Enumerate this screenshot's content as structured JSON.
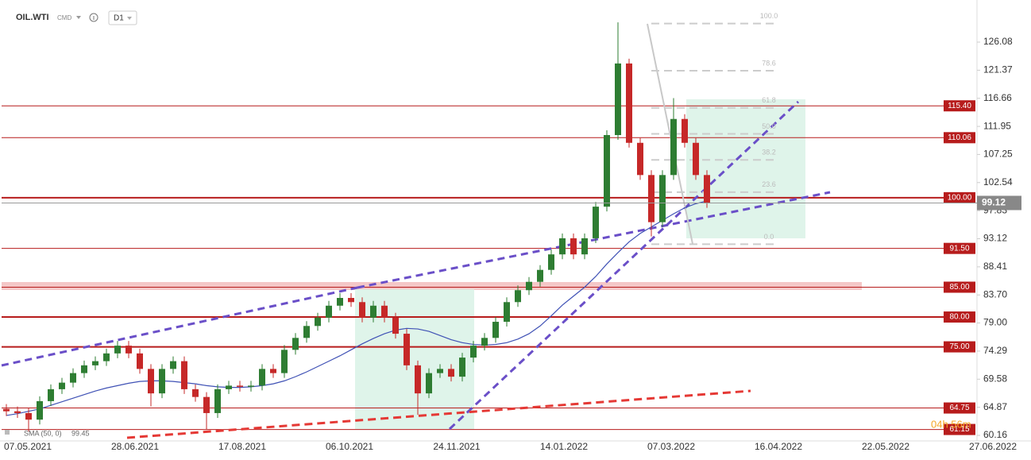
{
  "header": {
    "symbol": "OIL.WTI",
    "market": "CMD",
    "timeframe": "D1"
  },
  "chart_data": {
    "type": "candlestick",
    "ylim": [
      59.23,
      133.14
    ],
    "yticks": [
      60.16,
      64.87,
      69.58,
      74.29,
      {
        "value": 79.0,
        "label": "79.00"
      },
      {
        "value": 83.7,
        "label": "83.70"
      },
      88.41,
      93.12,
      97.83,
      102.54,
      107.25,
      111.95,
      116.66,
      121.37,
      126.08
    ],
    "x_labels": [
      "07.05.2021",
      "28.06.2021",
      "17.08.2021",
      "06.10.2021",
      "24.11.2021",
      "14.01.2022",
      "07.03.2022",
      "16.04.2022",
      "22.05.2022",
      "27.06.2022"
    ],
    "up_color": "#2e7d32",
    "down_color": "#c62828",
    "open": [
      64.6,
      64.2,
      63.9,
      62.8,
      65.9,
      67.9,
      69.0,
      70.6,
      71.9,
      72.6,
      73.9,
      75.2,
      73.9,
      71.3,
      67.2,
      71.3,
      72.6,
      67.9,
      66.6,
      63.9,
      67.9,
      68.5,
      68.3,
      68.5,
      71.3,
      70.6,
      74.5,
      76.5,
      78.5,
      79.9,
      81.9,
      83.2,
      82.5,
      79.9,
      81.9,
      79.9,
      77.2,
      71.9,
      67.2,
      70.6,
      71.3,
      70.0,
      73.2,
      75.2,
      76.5,
      79.2,
      82.5,
      84.5,
      85.9,
      87.9,
      90.5,
      93.2,
      90.5,
      93.2,
      98.5,
      110.5,
      122.5,
      109.2,
      103.8,
      95.9,
      103.8,
      113.2,
      109.2,
      103.8
    ],
    "high": [
      65.4,
      65.0,
      64.7,
      66.7,
      68.7,
      69.8,
      71.4,
      72.7,
      73.4,
      74.7,
      76.0,
      76.0,
      74.7,
      72.1,
      72.1,
      73.4,
      73.4,
      68.7,
      67.4,
      68.7,
      69.3,
      69.3,
      69.3,
      72.1,
      72.1,
      75.3,
      77.3,
      79.3,
      80.7,
      82.7,
      84.0,
      84.0,
      83.3,
      82.7,
      82.7,
      80.7,
      78.0,
      72.7,
      71.4,
      72.1,
      72.1,
      74.0,
      76.0,
      77.3,
      80.0,
      83.3,
      85.3,
      86.7,
      88.7,
      91.3,
      94.0,
      94.0,
      94.0,
      99.3,
      111.3,
      129.4,
      123.3,
      110.0,
      104.6,
      104.6,
      116.7,
      114.0,
      110.0,
      104.6
    ],
    "low": [
      63.4,
      63.1,
      60.8,
      62.0,
      65.1,
      67.1,
      68.2,
      69.8,
      71.1,
      71.8,
      73.1,
      73.1,
      70.5,
      65.0,
      66.4,
      70.5,
      67.1,
      65.8,
      61.2,
      63.1,
      67.1,
      67.5,
      67.5,
      67.7,
      69.8,
      69.8,
      73.7,
      75.7,
      77.7,
      79.1,
      81.1,
      81.7,
      79.1,
      79.1,
      79.1,
      76.4,
      71.1,
      63.6,
      66.4,
      69.8,
      69.2,
      69.2,
      72.4,
      74.4,
      75.7,
      78.4,
      81.7,
      83.7,
      85.1,
      87.1,
      89.7,
      89.7,
      89.7,
      92.4,
      97.7,
      109.7,
      108.4,
      103.0,
      93.5,
      95.1,
      103.0,
      108.4,
      103.0,
      98.3
    ],
    "close": [
      64.2,
      63.9,
      62.8,
      65.9,
      67.9,
      69.0,
      70.6,
      71.9,
      72.6,
      73.9,
      75.2,
      73.9,
      71.3,
      67.2,
      71.3,
      72.6,
      67.9,
      66.6,
      63.9,
      67.9,
      68.5,
      68.3,
      68.5,
      71.3,
      70.6,
      74.5,
      76.5,
      78.5,
      79.9,
      81.9,
      83.2,
      82.5,
      79.9,
      81.9,
      79.9,
      77.2,
      71.9,
      67.2,
      70.6,
      71.3,
      70.0,
      73.2,
      75.2,
      76.5,
      79.2,
      82.5,
      84.5,
      85.9,
      87.9,
      90.5,
      93.2,
      90.5,
      93.2,
      98.5,
      110.5,
      122.5,
      109.2,
      103.8,
      95.9,
      103.8,
      113.2,
      109.2,
      103.8,
      99.12
    ],
    "sma": {
      "name": "SMA (50, 0)",
      "last": 99.45,
      "color": "#3f51b5",
      "values": [
        63.5,
        63.8,
        64.2,
        64.6,
        65.2,
        65.8,
        66.4,
        67.0,
        67.6,
        68.1,
        68.5,
        68.9,
        69.2,
        69.3,
        69.3,
        69.2,
        69.0,
        68.8,
        68.5,
        68.3,
        68.2,
        68.2,
        68.3,
        68.5,
        68.8,
        69.3,
        70.0,
        70.8,
        71.7,
        72.6,
        73.5,
        74.5,
        75.5,
        76.4,
        77.2,
        77.8,
        78.1,
        78.0,
        77.6,
        76.9,
        76.2,
        75.7,
        75.4,
        75.3,
        75.4,
        75.7,
        76.3,
        77.2,
        78.5,
        80.2,
        82.0,
        83.5,
        85.0,
        86.8,
        88.9,
        90.8,
        92.6,
        94.0,
        95.1,
        96.2,
        97.3,
        98.3,
        99.0,
        99.45
      ]
    },
    "levels": [
      {
        "value": 115.4,
        "label": "115.40"
      },
      {
        "value": 110.06,
        "label": "110.06"
      },
      {
        "value": 100.0,
        "label": "100.00"
      },
      {
        "value": 91.5,
        "label": "91.50"
      },
      {
        "value": 85.0,
        "label": "85.00"
      },
      {
        "value": 80.0,
        "label": "80.00"
      },
      {
        "value": 75.0,
        "label": "75.00"
      },
      {
        "value": 64.75,
        "label": "64.75"
      },
      {
        "value": 61.15,
        "label": "61.15"
      }
    ],
    "level_color": "#b71c1c",
    "last_price": 99.12,
    "fib_range": [
      92.2,
      129.2
    ],
    "fib_levels": [
      {
        "value": 100.0,
        "label": "100.0"
      },
      {
        "value": 78.6,
        "label": "78.6"
      },
      {
        "value": 61.8,
        "label": "61.8"
      },
      {
        "value": 50.0,
        "label": "50.0"
      },
      {
        "value": 38.2,
        "label": "38.2"
      },
      {
        "value": 23.6,
        "label": "23.6"
      },
      {
        "value": 0.0,
        "label": "0.0"
      }
    ],
    "timer": "04h 56m"
  }
}
